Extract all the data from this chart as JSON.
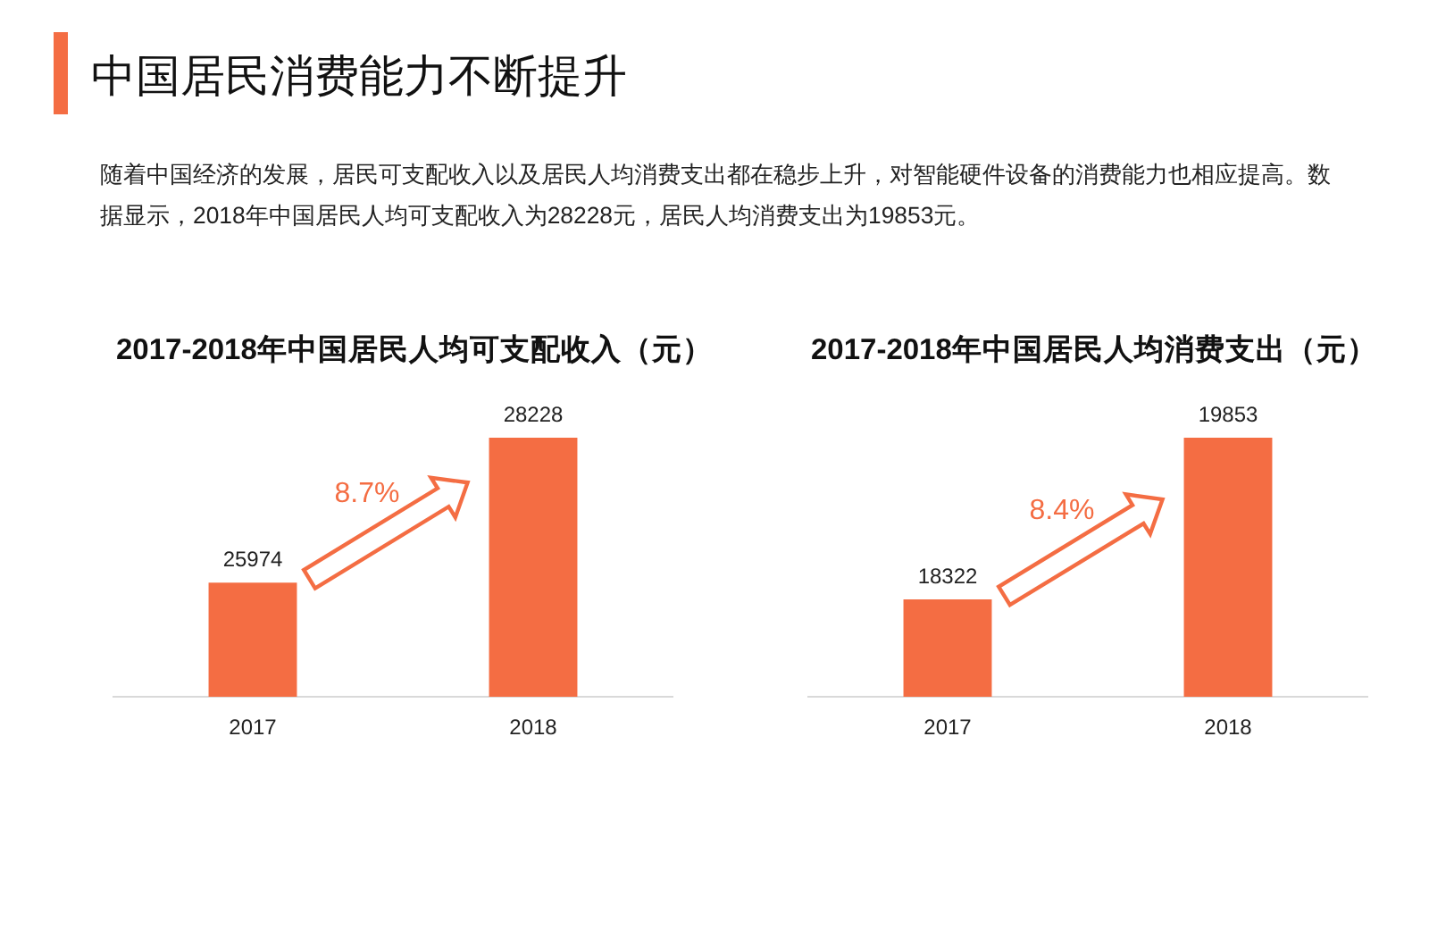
{
  "chart_data": [
    {
      "type": "other",
      "title": "中国居民消费能力不断提升",
      "subtitle": "随着中国经济的发展，居民可支配收入以及居民人均消费支出都在稳步上升，对智能硬件设备的消费能力也相应提高。数据显示，2018年中国居民人均可支配收入为28228元，居民人均消费支出为19853元。"
    },
    {
      "type": "bar",
      "title": "2017-2018年中国居民人均可支配收入（元）",
      "categories": [
        "2017",
        "2018"
      ],
      "values": [
        25974,
        28228
      ],
      "color": "#f46d43",
      "ylim": [
        24200,
        28228
      ],
      "tick_labels": "x",
      "data_labels": true,
      "annotations": [
        "8.7%"
      ]
    },
    {
      "type": "bar",
      "title": "2017-2018年中国居民人均消费支出（元）",
      "categories": [
        "2017",
        "2018"
      ],
      "values": [
        18322,
        19853
      ],
      "color": "#f46d43",
      "ylim": [
        17400,
        19853
      ],
      "tick_labels": "x",
      "data_labels": true,
      "annotations": [
        "8.4%"
      ]
    }
  ]
}
